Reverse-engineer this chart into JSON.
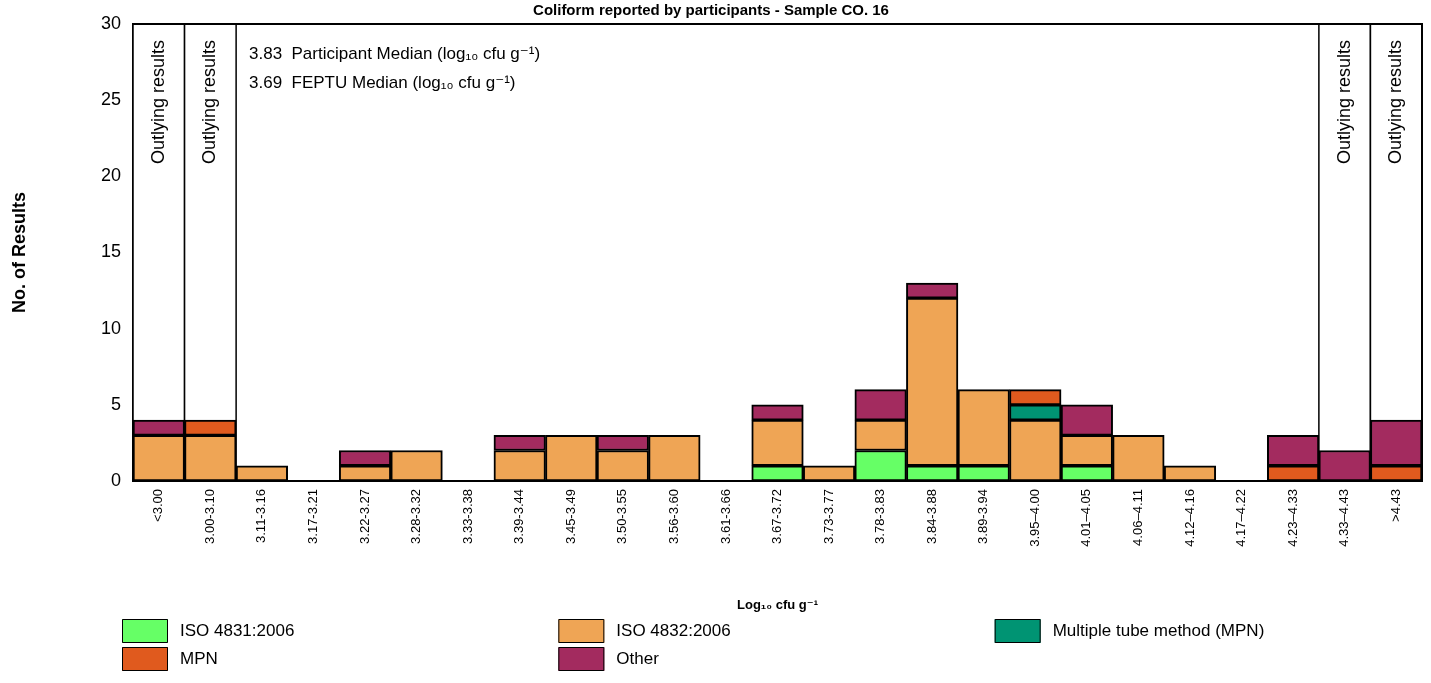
{
  "chart_data": {
    "type": "bar",
    "title": "Coliform reported by participants - Sample CO. 16",
    "xlabel": "Log₁₀ cfu g⁻¹",
    "ylabel": "No. of Results",
    "categories": [
      "<3.00",
      "3.00-3.10",
      "3.11-3.16",
      "3.17-3.21",
      "3.22-3.27",
      "3.28-3.32",
      "3.33-3.38",
      "3.39-3.44",
      "3.45-3.49",
      "3.50-3.55",
      "3.56-3.60",
      "3.61-3.66",
      "3.67-3.72",
      "3.73-3.77",
      "3.78-3.83",
      "3.84-3.88",
      "3.89-3.94",
      "3.95–4.00",
      "4.01–4.05",
      "4.06–4.11",
      "4.12–4.16",
      "4.17–4.22",
      "4.23–4.33",
      "4.33–4.43",
      ">4.43"
    ],
    "stacked": true,
    "series": [
      {
        "name": "ISO 4831:2006",
        "color": "#66ff66",
        "values": [
          0,
          0,
          0,
          0,
          0,
          0,
          0,
          0,
          0,
          0,
          0,
          0,
          1,
          0,
          2,
          1,
          1,
          0,
          1,
          0,
          0,
          0,
          0,
          0,
          0
        ]
      },
      {
        "name": "ISO 4832:2006",
        "color": "#efa555",
        "values": [
          3,
          3,
          1,
          0,
          1,
          2,
          0,
          2,
          3,
          2,
          3,
          0,
          3,
          1,
          2,
          11,
          5,
          4,
          2,
          3,
          1,
          0,
          0,
          0,
          0
        ]
      },
      {
        "name": "Multiple tube method (MPN)",
        "color": "#009473",
        "values": [
          0,
          0,
          0,
          0,
          0,
          0,
          0,
          0,
          0,
          0,
          0,
          0,
          0,
          0,
          0,
          0,
          0,
          1,
          0,
          0,
          0,
          0,
          0,
          0,
          0
        ]
      },
      {
        "name": "MPN",
        "color": "#e05a1e",
        "values": [
          0,
          1,
          0,
          0,
          0,
          0,
          0,
          0,
          0,
          0,
          0,
          0,
          0,
          0,
          0,
          0,
          0,
          1,
          0,
          0,
          0,
          0,
          1,
          0,
          1
        ]
      },
      {
        "name": "Other",
        "color": "#a32b5f",
        "values": [
          1,
          0,
          0,
          0,
          1,
          0,
          0,
          1,
          0,
          1,
          0,
          0,
          1,
          0,
          2,
          1,
          0,
          0,
          2,
          0,
          0,
          0,
          2,
          2,
          3
        ]
      }
    ],
    "ylim": [
      0,
      30
    ],
    "yticks": [
      0,
      5,
      10,
      15,
      20,
      25,
      30
    ],
    "bands": [
      {
        "axis": "x",
        "from": "<3.00",
        "to": "<3.00",
        "label": "Outlying results"
      },
      {
        "axis": "x",
        "from": "3.00-3.10",
        "to": "3.00-3.10",
        "label": "Outlying results"
      },
      {
        "axis": "x",
        "from": "4.33–4.43",
        "to": "4.33–4.43",
        "label": "Outlying results"
      },
      {
        "axis": "x",
        "from": ">4.43",
        "to": ">4.43",
        "label": "Outlying results"
      }
    ],
    "annotations": [
      "3.83  Participant Median (log₁₀ cfu g⁻¹)",
      "3.69  FEPTU Median (log₁₀ cfu g⁻¹)"
    ],
    "legend": "bottom",
    "grid": false
  }
}
